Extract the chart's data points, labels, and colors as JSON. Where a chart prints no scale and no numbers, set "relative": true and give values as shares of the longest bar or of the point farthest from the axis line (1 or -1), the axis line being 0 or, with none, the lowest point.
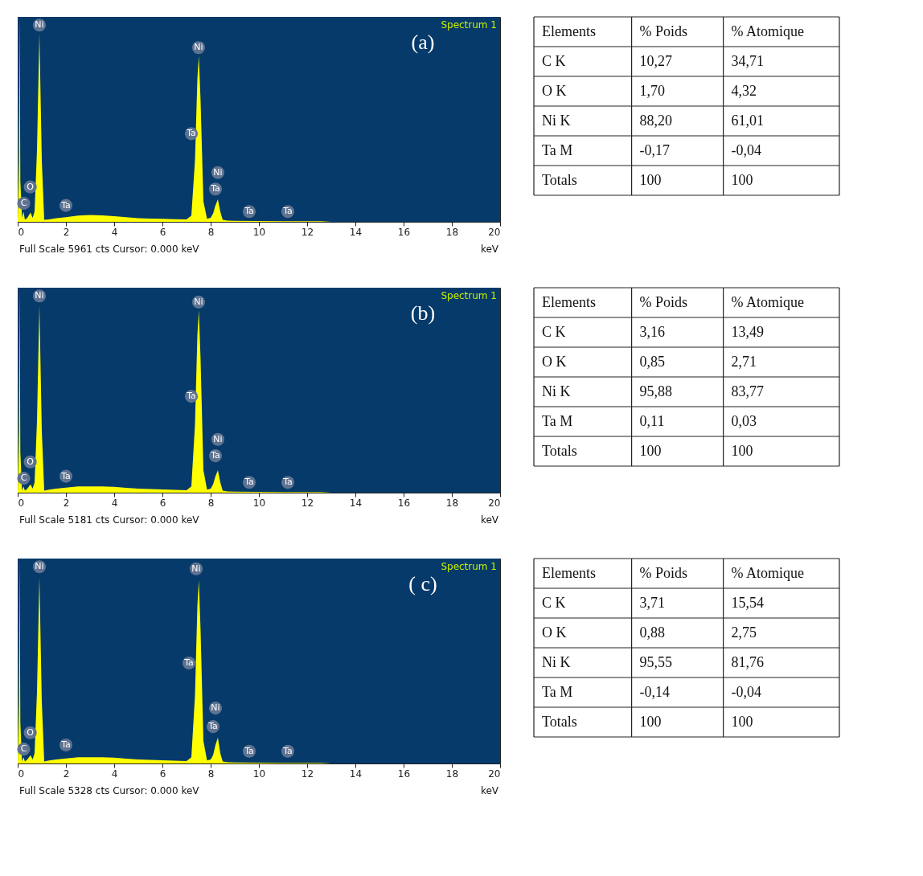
{
  "chart_data": [
    {
      "type": "area",
      "title": "(a)",
      "xlabel": "keV",
      "relative": true,
      "tick_labels": "x",
      "grid": false,
      "xlim": [
        0,
        20
      ],
      "xticks": [
        0,
        2,
        4,
        6,
        8,
        10,
        12,
        14,
        16,
        18,
        20
      ],
      "x": [
        0,
        0.05,
        0.08,
        0.11,
        0.18,
        0.24,
        0.3,
        0.4,
        0.53,
        0.62,
        0.7,
        0.8,
        0.9,
        1.0,
        1.1,
        1.3,
        1.6,
        2.0,
        2.5,
        3.0,
        3.5,
        4.0,
        4.5,
        5.0,
        5.5,
        6.0,
        6.5,
        7.0,
        7.2,
        7.35,
        7.45,
        7.51,
        7.58,
        7.7,
        7.85,
        8.0,
        8.1,
        8.2,
        8.3,
        8.4,
        8.5,
        8.7,
        9.0,
        10,
        11,
        12,
        12.6,
        13,
        14,
        16,
        18,
        20
      ],
      "series": [
        {
          "color": "#ffff00",
          "values": [
            0,
            0.3,
            1.0,
            0.2,
            0.02,
            0.05,
            0.01,
            0.02,
            0.045,
            0.02,
            0.05,
            0.35,
            0.92,
            0.3,
            0.01,
            0.012,
            0.018,
            0.023,
            0.03,
            0.033,
            0.031,
            0.027,
            0.023,
            0.018,
            0.016,
            0.015,
            0.013,
            0.012,
            0.03,
            0.3,
            0.7,
            0.81,
            0.6,
            0.1,
            0.015,
            0.02,
            0.04,
            0.08,
            0.11,
            0.05,
            0.01,
            0.006,
            0.005,
            0.004,
            0.003,
            0.003,
            0.003,
            0,
            0,
            0,
            0,
            0
          ]
        }
      ],
      "annotations": [
        "Spectrum 1",
        "Full Scale 5961 cts  Cursor: 0.000 keV",
        {
          "text": "Ni",
          "x": 0.9,
          "y": 0.96
        },
        {
          "text": "Ni",
          "x": 7.5,
          "y": 0.85
        },
        {
          "text": "Ta",
          "x": 7.2,
          "y": 0.43
        },
        {
          "text": "Ni",
          "x": 8.3,
          "y": 0.24
        },
        {
          "text": "Ta",
          "x": 8.2,
          "y": 0.16
        },
        {
          "text": "C",
          "x": 0.25,
          "y": 0.09
        },
        {
          "text": "O",
          "x": 0.52,
          "y": 0.17
        },
        {
          "text": "Ta",
          "x": 2.0,
          "y": 0.08
        },
        {
          "text": "Ta",
          "x": 9.6,
          "y": 0.05
        },
        {
          "text": "Ta",
          "x": 11.2,
          "y": 0.05
        }
      ]
    },
    {
      "type": "other",
      "annotations": [
        "Elements",
        "% Poids",
        "% Atomique",
        "C K",
        "10,27",
        "34,71",
        "O K",
        "1,70",
        "4,32",
        "Ni K",
        "88,20",
        "61,01",
        "Ta M",
        "-0,17",
        "-0,04",
        "Totals",
        "100",
        "100"
      ]
    },
    {
      "type": "area",
      "title": "(b)",
      "xlabel": "keV",
      "relative": true,
      "tick_labels": "x",
      "grid": false,
      "xlim": [
        0,
        20
      ],
      "xticks": [
        0,
        2,
        4,
        6,
        8,
        10,
        12,
        14,
        16,
        18,
        20
      ],
      "x": [
        0,
        0.05,
        0.08,
        0.11,
        0.18,
        0.24,
        0.3,
        0.4,
        0.53,
        0.62,
        0.7,
        0.8,
        0.9,
        1.0,
        1.1,
        1.3,
        1.6,
        2.0,
        2.5,
        3.0,
        3.5,
        4.0,
        4.5,
        5.0,
        5.5,
        6.0,
        6.5,
        7.0,
        7.2,
        7.35,
        7.45,
        7.51,
        7.58,
        7.7,
        7.85,
        8.0,
        8.1,
        8.2,
        8.3,
        8.4,
        8.5,
        8.7,
        9.0,
        10,
        11,
        12,
        12.6,
        13,
        14,
        16,
        18,
        20
      ],
      "series": [
        {
          "color": "#ffff00",
          "values": [
            0,
            0.3,
            1.0,
            0.2,
            0.01,
            0.03,
            0.01,
            0.02,
            0.04,
            0.02,
            0.05,
            0.35,
            0.915,
            0.3,
            0.01,
            0.015,
            0.02,
            0.025,
            0.03,
            0.03,
            0.03,
            0.028,
            0.024,
            0.02,
            0.018,
            0.016,
            0.014,
            0.012,
            0.03,
            0.33,
            0.77,
            0.89,
            0.66,
            0.11,
            0.015,
            0.02,
            0.04,
            0.08,
            0.11,
            0.05,
            0.01,
            0.006,
            0.005,
            0.004,
            0.003,
            0.003,
            0.003,
            0,
            0,
            0,
            0,
            0
          ]
        }
      ],
      "annotations": [
        "Spectrum 1",
        "Full Scale 5181 cts  Cursor: 0.000 keV",
        {
          "text": "Ni",
          "x": 0.9,
          "y": 0.96
        },
        {
          "text": "Ni",
          "x": 7.5,
          "y": 0.93
        },
        {
          "text": "Ta",
          "x": 7.2,
          "y": 0.47
        },
        {
          "text": "Ni",
          "x": 8.3,
          "y": 0.26
        },
        {
          "text": "Ta",
          "x": 8.2,
          "y": 0.18
        },
        {
          "text": "C",
          "x": 0.25,
          "y": 0.07
        },
        {
          "text": "O",
          "x": 0.52,
          "y": 0.15
        },
        {
          "text": "Ta",
          "x": 2.0,
          "y": 0.08
        },
        {
          "text": "Ta",
          "x": 9.6,
          "y": 0.05
        },
        {
          "text": "Ta",
          "x": 11.2,
          "y": 0.05
        }
      ]
    },
    {
      "type": "other",
      "annotations": [
        "Elements",
        "% Poids",
        "% Atomique",
        "C K",
        "3,16",
        "13,49",
        "O K",
        "0,85",
        "2,71",
        "Ni K",
        "95,88",
        "83,77",
        "Ta M",
        "0,11",
        "0,03",
        "Totals",
        "100",
        "100"
      ]
    },
    {
      "type": "area",
      "title": "( c)",
      "xlabel": "keV",
      "relative": true,
      "tick_labels": "x",
      "grid": false,
      "xlim": [
        0,
        20
      ],
      "xticks": [
        0,
        2,
        4,
        6,
        8,
        10,
        12,
        14,
        16,
        18,
        20
      ],
      "x": [
        0,
        0.05,
        0.08,
        0.11,
        0.18,
        0.24,
        0.3,
        0.4,
        0.53,
        0.62,
        0.7,
        0.8,
        0.9,
        1.0,
        1.1,
        1.3,
        1.6,
        2.0,
        2.5,
        3.0,
        3.5,
        4.0,
        4.5,
        5.0,
        5.5,
        6.0,
        6.5,
        7.0,
        7.2,
        7.35,
        7.45,
        7.51,
        7.58,
        7.7,
        7.85,
        8.0,
        8.1,
        8.2,
        8.3,
        8.4,
        8.5,
        8.7,
        9.0,
        10,
        11,
        12,
        12.6,
        13,
        14,
        16,
        18,
        20
      ],
      "series": [
        {
          "color": "#ffff00",
          "values": [
            0,
            0.3,
            1.0,
            0.2,
            0.01,
            0.03,
            0.01,
            0.02,
            0.04,
            0.02,
            0.05,
            0.35,
            0.91,
            0.3,
            0.01,
            0.015,
            0.02,
            0.025,
            0.03,
            0.03,
            0.03,
            0.028,
            0.024,
            0.02,
            0.018,
            0.016,
            0.014,
            0.012,
            0.03,
            0.33,
            0.77,
            0.895,
            0.66,
            0.11,
            0.015,
            0.02,
            0.04,
            0.09,
            0.126,
            0.05,
            0.01,
            0.006,
            0.005,
            0.004,
            0.003,
            0.003,
            0.003,
            0,
            0,
            0,
            0,
            0
          ]
        }
      ],
      "annotations": [
        "Spectrum 1",
        "Full Scale 5328 cts  Cursor: 0.000 keV",
        {
          "text": "Ni",
          "x": 0.9,
          "y": 0.96
        },
        {
          "text": "Ni",
          "x": 7.4,
          "y": 0.95
        },
        {
          "text": "Ta",
          "x": 7.1,
          "y": 0.49
        },
        {
          "text": "Ni",
          "x": 8.2,
          "y": 0.27
        },
        {
          "text": "Ta",
          "x": 8.1,
          "y": 0.18
        },
        {
          "text": "C",
          "x": 0.25,
          "y": 0.07
        },
        {
          "text": "O",
          "x": 0.52,
          "y": 0.15
        },
        {
          "text": "Ta",
          "x": 2.0,
          "y": 0.09
        },
        {
          "text": "Ta",
          "x": 9.6,
          "y": 0.06
        },
        {
          "text": "Ta",
          "x": 11.2,
          "y": 0.06
        }
      ]
    },
    {
      "type": "other",
      "annotations": [
        "Elements",
        "% Poids",
        "% Atomique",
        "C K",
        "3,71",
        "15,54",
        "O K",
        "0,88",
        "2,75",
        "Ni K",
        "95,55",
        "81,76",
        "Ta M",
        "-0,14",
        "-0,04",
        "Totals",
        "100",
        "100"
      ]
    }
  ]
}
